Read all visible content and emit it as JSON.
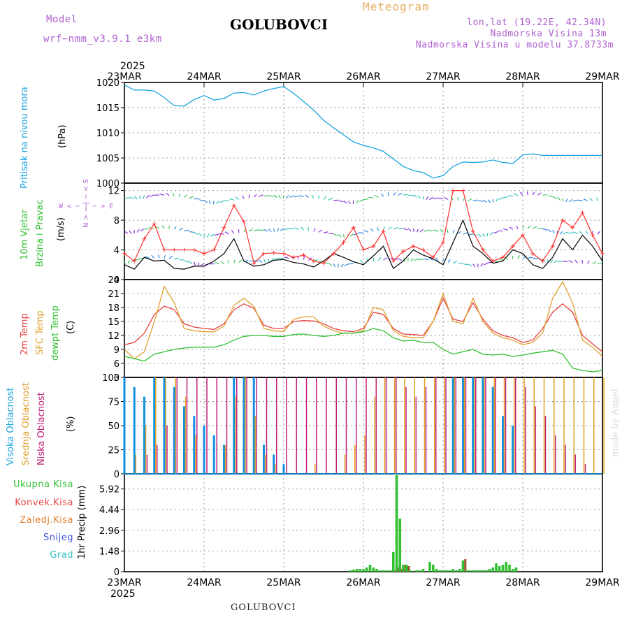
{
  "header": {
    "model_label": "Model",
    "model_name": "wrf−nmm_v3.9.1  e3km",
    "station": "GOLUBOVCI",
    "meteogram": "Meteogram",
    "lonlat": "lon,lat (19.22E, 42.34N)",
    "elevation": "Nadmorska Visina 13m",
    "model_elevation": "Nadmorska Visina u modelu 37.8733m"
  },
  "footer": {
    "station": "GOLUBOVCI",
    "signature": "made by Angel"
  },
  "timeaxis": {
    "year": "2025",
    "days": [
      "23MAR",
      "24MAR",
      "25MAR",
      "26MAR",
      "27MAR",
      "28MAR",
      "29MAR"
    ]
  },
  "labels": {
    "pressure": [
      "Pritisak na nivou mora",
      "(hPa)"
    ],
    "wind": [
      "10m Vjetar",
      "Brzina i Pravac",
      "(m/s)"
    ],
    "compass": "W  < − | − >  E",
    "compass_ns": "N  > − | − <  S",
    "temp": [
      "2m Temp",
      "SFC Temp",
      "dewpt Temp",
      "(C)"
    ],
    "cloud": [
      "Visoka Oblacnost",
      "Srednja Oblacnost",
      "Niska Oblacnost",
      "(%)"
    ],
    "precip_legend": [
      "Ukupna  Kisa",
      "Konvek.Kisa",
      "Zaledj.Kisa",
      "Snijeg",
      "Grad"
    ],
    "precip_unit": "1hr Precip (mm)"
  },
  "colors": {
    "pressure": "#1aa3e0",
    "wind_speed": "#000000",
    "wind_gust": "#ff3030",
    "temp2m": "#e84040",
    "sfc": "#e0a030",
    "dew": "#30c030",
    "high_cloud": "#1090e0",
    "mid_cloud": "#e0a020",
    "low_cloud": "#c0207a",
    "total_precip": "#30c030",
    "conv_precip": "#e84040",
    "frz_precip": "#e08030",
    "snow": "#4050e0",
    "hail": "#30c0c0"
  },
  "chart_data": [
    {
      "type": "line",
      "title": "Pritisak na nivou mora",
      "ylabel": "(hPa)",
      "ylim": [
        1000,
        1020
      ],
      "yticks": [
        "1000",
        "1005",
        "1010",
        "1015",
        "1020"
      ],
      "x_hours": [
        0,
        3,
        6,
        9,
        12,
        15,
        18,
        21,
        24,
        27,
        30,
        33,
        36,
        39,
        42,
        45,
        48,
        51,
        54,
        57,
        60,
        63,
        66,
        69,
        72,
        75,
        78,
        81,
        84,
        87,
        90,
        93,
        96,
        99,
        102,
        105,
        108,
        111,
        114,
        117,
        120,
        123,
        126,
        129,
        132,
        135,
        138,
        141,
        144
      ],
      "series": [
        {
          "name": "SLP",
          "values": [
            1019.5,
            1018.5,
            1018.5,
            1018.3,
            1017,
            1015.4,
            1015.3,
            1016.6,
            1017.4,
            1016.5,
            1016.8,
            1017.9,
            1018,
            1017.5,
            1018.3,
            1018.8,
            1019.2,
            1017.8,
            1016.2,
            1014.5,
            1012.5,
            1011,
            1009.6,
            1008.2,
            1007.5,
            1007,
            1006.3,
            1004.8,
            1003.3,
            1002.5,
            1002.1,
            1001,
            1001.5,
            1003.3,
            1004.2,
            1004.1,
            1004.2,
            1004.6,
            1004.1,
            1003.9,
            1005.6,
            1005.8,
            1005.5,
            1005.5,
            1005.5,
            1005.5,
            1005.5,
            1005.5,
            1005.5
          ]
        }
      ]
    },
    {
      "type": "line",
      "title": "10m Vjetar Brzina i Pravac",
      "ylabel": "(m/s)",
      "ylim": [
        0,
        13
      ],
      "yticks": [
        "0",
        "4",
        "8",
        "12"
      ],
      "x_hours": [
        0,
        3,
        6,
        9,
        12,
        15,
        18,
        21,
        24,
        27,
        30,
        33,
        36,
        39,
        42,
        45,
        48,
        51,
        54,
        57,
        60,
        63,
        66,
        69,
        72,
        75,
        78,
        81,
        84,
        87,
        90,
        93,
        96,
        99,
        102,
        105,
        108,
        111,
        114,
        117,
        120,
        123,
        126,
        129,
        132,
        135,
        138,
        141,
        144
      ],
      "series": [
        {
          "name": "speed",
          "values": [
            2,
            1.4,
            3,
            2.5,
            2.6,
            1.5,
            1.4,
            1.8,
            1.8,
            2.5,
            3.5,
            5.5,
            2.5,
            1.8,
            2,
            2.6,
            2.7,
            2.3,
            2.1,
            1.7,
            2.5,
            3.5,
            3,
            2.4,
            2,
            3.2,
            4.5,
            1.5,
            2.5,
            4,
            3.3,
            2.8,
            2,
            5,
            8,
            4.5,
            3.5,
            2.2,
            2.5,
            4,
            3.5,
            2,
            1.5,
            3,
            5.5,
            4,
            6,
            4.5,
            2.5
          ]
        },
        {
          "name": "gust",
          "values": [
            3.5,
            2.5,
            5.5,
            7.5,
            4,
            4,
            4,
            4,
            3.5,
            4,
            7,
            10,
            7.8,
            2.2,
            3.5,
            3.6,
            3.5,
            3,
            3.3,
            2.5,
            2.2,
            3.5,
            5,
            7,
            4,
            4.5,
            6.5,
            2.5,
            3.8,
            4.5,
            4,
            3,
            5,
            12,
            12,
            6.5,
            4,
            2.5,
            3,
            4.5,
            6,
            3.5,
            2.5,
            4.5,
            8,
            7,
            9,
            6,
            3.5
          ]
        }
      ]
    },
    {
      "type": "line",
      "title": "Temperatures",
      "ylabel": "(C)",
      "ylim": [
        3,
        24
      ],
      "yticks": [
        "3",
        "6",
        "9",
        "12",
        "15",
        "18",
        "21",
        "24"
      ],
      "x_hours": [
        0,
        3,
        6,
        9,
        12,
        15,
        18,
        21,
        24,
        27,
        30,
        33,
        36,
        39,
        42,
        45,
        48,
        51,
        54,
        57,
        60,
        63,
        66,
        69,
        72,
        75,
        78,
        81,
        84,
        87,
        90,
        93,
        96,
        99,
        102,
        105,
        108,
        111,
        114,
        117,
        120,
        123,
        126,
        129,
        132,
        135,
        138,
        141,
        144
      ],
      "series": [
        {
          "name": "2m Temp",
          "values": [
            10,
            10.5,
            12.5,
            16.5,
            18.3,
            17.5,
            14.5,
            13.8,
            13.5,
            13.3,
            14.5,
            17.5,
            18.8,
            17.8,
            14.2,
            13.5,
            13.5,
            15,
            15.2,
            15.1,
            14.5,
            13.5,
            13,
            12.8,
            13.5,
            17,
            16.5,
            13.5,
            12.3,
            12.2,
            12,
            15,
            20,
            15.5,
            15,
            19,
            15.5,
            13,
            12,
            11.5,
            10.5,
            11,
            13.5,
            17,
            18.8,
            17,
            12,
            10.2,
            8.5
          ]
        },
        {
          "name": "SFC Temp",
          "values": [
            9,
            7,
            8.5,
            15,
            22.5,
            19,
            13.5,
            13,
            12.8,
            12.8,
            14,
            18.5,
            20,
            18.2,
            13.5,
            13,
            12.8,
            15.5,
            16,
            16,
            14,
            13,
            12.5,
            12.5,
            13,
            18,
            17.5,
            13,
            11.8,
            11.5,
            11.5,
            15,
            21,
            15,
            14.5,
            20,
            15,
            12.5,
            11.5,
            11,
            10,
            10.5,
            12.5,
            20,
            23.5,
            19,
            11,
            9.5,
            7.5
          ]
        },
        {
          "name": "dewpt Temp",
          "values": [
            7.5,
            7,
            6.5,
            8,
            8.5,
            9,
            9.3,
            9.5,
            9.5,
            9.5,
            10,
            11,
            11.8,
            12,
            12,
            11.8,
            11.8,
            12.2,
            12.3,
            12,
            11.8,
            12,
            12.5,
            12.5,
            12.8,
            13.5,
            13,
            11.5,
            10.8,
            11,
            10.5,
            10.5,
            9,
            8,
            8.5,
            9,
            8,
            7.8,
            8,
            7.5,
            7.8,
            8.2,
            8.5,
            8.8,
            8,
            5,
            4.5,
            4.2,
            4.5
          ]
        }
      ]
    },
    {
      "type": "bar",
      "title": "Oblacnost",
      "ylabel": "(%)",
      "ylim": [
        0,
        100
      ],
      "yticks": [
        "0",
        "25",
        "50",
        "75",
        "100"
      ],
      "series": [
        {
          "name": "Visoka Oblacnost",
          "values": [
            100,
            90,
            80,
            100,
            100,
            90,
            70,
            60,
            50,
            40,
            30,
            100,
            100,
            100,
            30,
            20,
            10,
            0,
            0,
            0,
            0,
            0,
            0,
            0,
            0,
            0,
            0,
            0,
            0,
            0,
            0,
            0,
            0,
            100,
            100,
            100,
            100,
            90,
            60,
            50,
            0,
            0,
            0,
            0,
            0,
            0,
            0,
            0,
            0
          ]
        },
        {
          "name": "Srednja Oblacnost",
          "values": [
            0,
            20,
            50,
            100,
            100,
            100,
            80,
            40,
            0,
            0,
            30,
            80,
            100,
            60,
            20,
            10,
            0,
            0,
            0,
            10,
            0,
            0,
            20,
            30,
            40,
            80,
            100,
            100,
            100,
            100,
            100,
            100,
            100,
            100,
            100,
            100,
            100,
            100,
            100,
            100,
            100,
            100,
            100,
            100,
            100,
            100,
            100,
            100,
            100
          ]
        },
        {
          "name": "Niska Oblacnost",
          "values": [
            0,
            0,
            20,
            30,
            50,
            100,
            100,
            100,
            100,
            100,
            100,
            100,
            100,
            100,
            100,
            100,
            100,
            100,
            100,
            100,
            100,
            100,
            100,
            100,
            100,
            100,
            100,
            100,
            90,
            80,
            90,
            100,
            100,
            100,
            100,
            100,
            100,
            100,
            100,
            100,
            90,
            70,
            60,
            40,
            30,
            20,
            10,
            0,
            0
          ]
        }
      ]
    },
    {
      "type": "bar",
      "title": "1hr Precip",
      "ylabel": "(mm)",
      "ylim": [
        0,
        7
      ],
      "yticks": [
        "0",
        "1.48",
        "2.96",
        "4.44",
        "5.92"
      ],
      "x_hours": [
        68,
        69,
        70,
        71,
        72,
        73,
        74,
        75,
        76,
        77,
        78,
        79,
        80,
        81,
        82,
        83,
        84,
        85,
        86,
        88,
        89,
        90,
        92,
        93,
        94,
        95,
        96,
        97,
        98,
        99,
        100,
        101,
        102,
        103,
        104,
        105,
        106,
        107,
        108,
        109,
        110,
        111,
        112,
        113,
        114,
        115,
        116,
        117,
        118
      ],
      "series": [
        {
          "name": "Ukupna Kisa",
          "values": [
            0.1,
            0.15,
            0.2,
            0.2,
            0.2,
            0.3,
            0.5,
            0.3,
            0.2,
            0.1,
            0.1,
            0.1,
            0.1,
            1.4,
            6.9,
            3.8,
            0.5,
            0.5,
            0.1,
            0.1,
            0.1,
            0.2,
            0.7,
            0.5,
            0.2,
            0.1,
            0.1,
            0.1,
            0.1,
            0.2,
            0.1,
            0.2,
            0.8,
            0.1,
            0.1,
            0.1,
            0.1,
            0.1,
            0.1,
            0.1,
            0.2,
            0.3,
            0.6,
            0.4,
            0.5,
            0.7,
            0.5,
            0.2,
            0.3
          ]
        },
        {
          "name": "Konvek.Kisa",
          "values": [
            0,
            0,
            0,
            0,
            0,
            0,
            0,
            0,
            0,
            0,
            0,
            0,
            0,
            0.1,
            0.3,
            0.2,
            0.5,
            0.4,
            0,
            0,
            0,
            0,
            0,
            0,
            0,
            0,
            0,
            0,
            0,
            0,
            0,
            0,
            0.9,
            0,
            0,
            0,
            0,
            0,
            0,
            0,
            0,
            0,
            0,
            0,
            0,
            0,
            0,
            0,
            0
          ]
        }
      ]
    }
  ]
}
